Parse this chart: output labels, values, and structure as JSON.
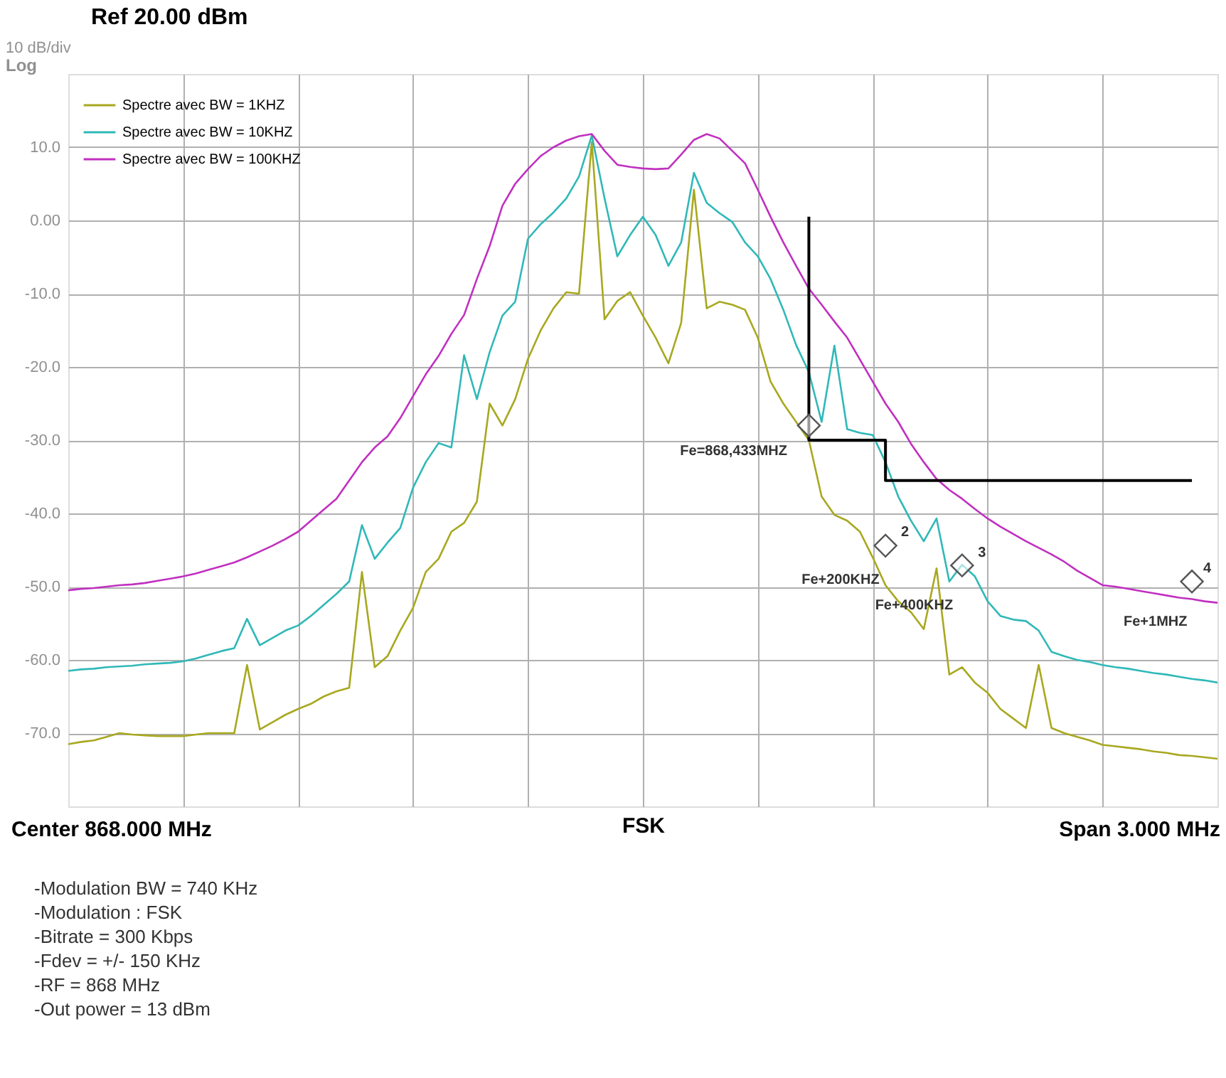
{
  "chart_data": {
    "type": "line",
    "title": "Ref 20.00 dBm",
    "xlabel": "FSK",
    "categories": [
      null,
      null,
      null,
      null,
      null,
      null,
      null,
      null,
      null,
      null,
      null,
      null,
      null,
      null,
      null,
      null,
      null,
      null,
      null,
      null,
      null,
      null,
      null,
      null,
      null,
      null,
      null,
      null,
      null,
      null,
      null,
      null,
      null,
      null,
      null,
      null,
      null,
      null,
      null,
      null,
      null,
      null,
      null,
      null,
      null,
      null,
      null,
      null,
      null,
      null,
      null,
      null,
      null,
      null,
      null,
      null,
      null,
      null,
      null,
      null,
      null,
      null,
      null,
      null,
      null,
      null,
      null,
      null,
      null,
      null,
      null,
      null,
      null,
      null,
      null,
      null,
      null,
      null,
      null,
      null,
      null,
      null,
      null,
      null,
      null,
      null,
      null,
      null,
      null,
      null,
      null
    ],
    "ylim": [
      -80,
      20
    ],
    "yticks": [
      {
        "value": 10,
        "label": "10.0"
      },
      {
        "value": 0,
        "label": "0.00"
      },
      {
        "value": -10,
        "label": "-10.0"
      },
      {
        "value": -20,
        "label": "-20.0"
      },
      {
        "value": -30,
        "label": "-30.0"
      },
      {
        "value": -40,
        "label": "-40.0"
      },
      {
        "value": -50,
        "label": "-50.0"
      },
      {
        "value": -60,
        "label": "-60.0"
      },
      {
        "value": -70,
        "label": "-70.0"
      }
    ],
    "tick_labels": "y",
    "grid": true,
    "legend": "top left",
    "line_style": "solid",
    "series": [
      {
        "name": "Spectre avec BW = 1KHZ",
        "color": "#a8a820",
        "values": [
          -71.5,
          -71.2,
          -71,
          -70.5,
          -70,
          -70.2,
          -70.3,
          -70.4,
          -70.4,
          -70.4,
          -70.2,
          -70,
          -70,
          -70,
          -60.7,
          -69.5,
          -68.5,
          -67.5,
          -66.7,
          -66,
          -65,
          -64.3,
          -63.8,
          -48,
          -61,
          -59.5,
          -56,
          -52.9,
          -48,
          -46.2,
          -42.5,
          -41.3,
          -38.4,
          -25,
          -28,
          -24.4,
          -18.9,
          -15,
          -12,
          -9.8,
          -10,
          10.7,
          -13.5,
          -11,
          -9.8,
          -13,
          -16,
          -19.5,
          -14,
          4.2,
          -12,
          -11.1,
          -11.5,
          -12.2,
          -16,
          -22,
          -25,
          -27.5,
          -30,
          -37.7,
          -40.2,
          -41,
          -42.5,
          -46,
          -49.8,
          -52,
          -53.5,
          -55.8,
          -47.5,
          -62,
          -61,
          -63.1,
          -64.5,
          -66.7,
          -68,
          -69.3,
          -60.7,
          -69.3,
          -70,
          -70.5,
          -71,
          -71.6,
          -71.8,
          -72,
          -72.2,
          -72.5,
          -72.7,
          -73,
          -73.1,
          -73.3,
          -73.5
        ]
      },
      {
        "name": "Spectre avec BW = 10KHZ",
        "color": "#30b8b8",
        "values": [
          -61.5,
          -61.3,
          -61.2,
          -61,
          -60.9,
          -60.8,
          -60.6,
          -60.5,
          -60.4,
          -60.2,
          -59.8,
          -59.3,
          -58.8,
          -58.4,
          -54.4,
          -58,
          -57,
          -56,
          -55.3,
          -54,
          -52.5,
          -51,
          -49.3,
          -41.6,
          -46.2,
          -44,
          -42,
          -36.5,
          -33,
          -30.4,
          -31,
          -18.4,
          -24.4,
          -18,
          -13,
          -11.1,
          -2.5,
          -0.5,
          1.1,
          3,
          6.0,
          11.6,
          3,
          -4.9,
          -2,
          0.5,
          -2,
          -6.2,
          -3,
          6.5,
          2.4,
          1,
          -0.2,
          -3,
          -4.9,
          -8,
          -12.2,
          -17,
          -20.7,
          -27.5,
          -17.1,
          -28.5,
          -29,
          -29.3,
          -33,
          -37.7,
          -41,
          -43.8,
          -40.7,
          -49.3,
          -47,
          -48.6,
          -52,
          -54,
          -54.5,
          -54.7,
          -56,
          -58.9,
          -59.5,
          -60,
          -60.3,
          -60.7,
          -61,
          -61.2,
          -61.5,
          -61.8,
          -62,
          -62.3,
          -62.6,
          -62.8,
          -63.1
        ]
      },
      {
        "name": "Spectre avec BW = 100KHZ",
        "color": "#c030c0",
        "values": [
          -50.5,
          -50.3,
          -50.2,
          -50,
          -49.8,
          -49.7,
          -49.5,
          -49.2,
          -48.9,
          -48.6,
          -48.2,
          -47.7,
          -47.2,
          -46.7,
          -46,
          -45.2,
          -44.4,
          -43.5,
          -42.5,
          -41,
          -39.5,
          -38,
          -35.5,
          -33,
          -31,
          -29.5,
          -27,
          -24,
          -21,
          -18.5,
          -15.5,
          -12.9,
          -8,
          -3.5,
          2,
          5,
          7,
          8.8,
          10,
          10.9,
          11.5,
          11.8,
          9.5,
          7.6,
          7.3,
          7.1,
          7.0,
          7.1,
          9,
          11,
          11.8,
          11.2,
          9.5,
          7.8,
          4.2,
          0.5,
          -3,
          -6.2,
          -9.3,
          -11.5,
          -13.8,
          -16,
          -19,
          -22,
          -25,
          -27.5,
          -30.5,
          -33,
          -35.3,
          -36.8,
          -38,
          -39.4,
          -40.7,
          -41.8,
          -42.8,
          -43.8,
          -44.7,
          -45.6,
          -46.6,
          -47.8,
          -48.8,
          -49.8,
          -50,
          -50.3,
          -50.6,
          -50.9,
          -51.2,
          -51.5,
          -51.7,
          -52,
          -52.2
        ]
      },
      {
        "type": "step",
        "color": "#000000",
        "values": [
          null,
          null,
          null,
          null,
          null,
          null,
          null,
          null,
          null,
          null,
          null,
          null,
          null,
          null,
          null,
          null,
          null,
          null,
          null,
          null,
          null,
          null,
          null,
          null,
          null,
          null,
          null,
          null,
          null,
          null,
          null,
          null,
          null,
          null,
          null,
          null,
          null,
          null,
          null,
          null,
          null,
          null,
          null,
          null,
          null,
          null,
          null,
          null,
          null,
          null,
          null,
          null,
          null,
          null,
          null,
          null,
          null,
          null,
          0.5,
          -30,
          -30,
          -30,
          -30,
          -30,
          -30,
          -35.5,
          -35.5,
          -35.5,
          -35.5,
          -35.5,
          -35.5,
          -35.5,
          -35.5,
          -35.5,
          -35.5,
          -35.5,
          -35.5,
          -35.5,
          -35.5,
          -35.5,
          -35.5,
          -35.5,
          -35.5,
          -35.5,
          -35.5,
          -35.5,
          -35.5,
          -35.5,
          -35.5,
          null,
          null
        ]
      },
      {
        "type": "scatter",
        "marker": "diamond",
        "color": "#555555",
        "values": [
          null,
          null,
          null,
          null,
          null,
          null,
          null,
          null,
          null,
          null,
          null,
          null,
          null,
          null,
          null,
          null,
          null,
          null,
          null,
          null,
          null,
          null,
          null,
          null,
          null,
          null,
          null,
          null,
          null,
          null,
          null,
          null,
          null,
          null,
          null,
          null,
          null,
          null,
          null,
          null,
          null,
          null,
          null,
          null,
          null,
          null,
          null,
          null,
          null,
          null,
          null,
          null,
          null,
          null,
          null,
          null,
          null,
          null,
          -28,
          null,
          null,
          null,
          null,
          null,
          -44.4,
          null,
          null,
          null,
          null,
          null,
          -47.1,
          null,
          null,
          null,
          null,
          null,
          null,
          null,
          null,
          null,
          null,
          null,
          null,
          null,
          null,
          null,
          null,
          null,
          -49.3,
          null,
          null
        ]
      }
    ],
    "annotations": [
      "10 dB/div",
      "Log",
      "Center 868.000 MHz",
      "Span 3.000 MHz",
      "-Modulation BW = 740 KHz",
      "-Modulation : FSK",
      "-Bitrate = 300 Kbps",
      "-Fdev    = +/- 150 KHz",
      "-RF       = 868 MHz",
      "-Out power = 13 dBm",
      "Fe=868,433MHZ",
      "Fe+200KHZ",
      "Fe+400KHZ",
      "Fe+1MHZ",
      "2",
      "3",
      "4"
    ]
  }
}
